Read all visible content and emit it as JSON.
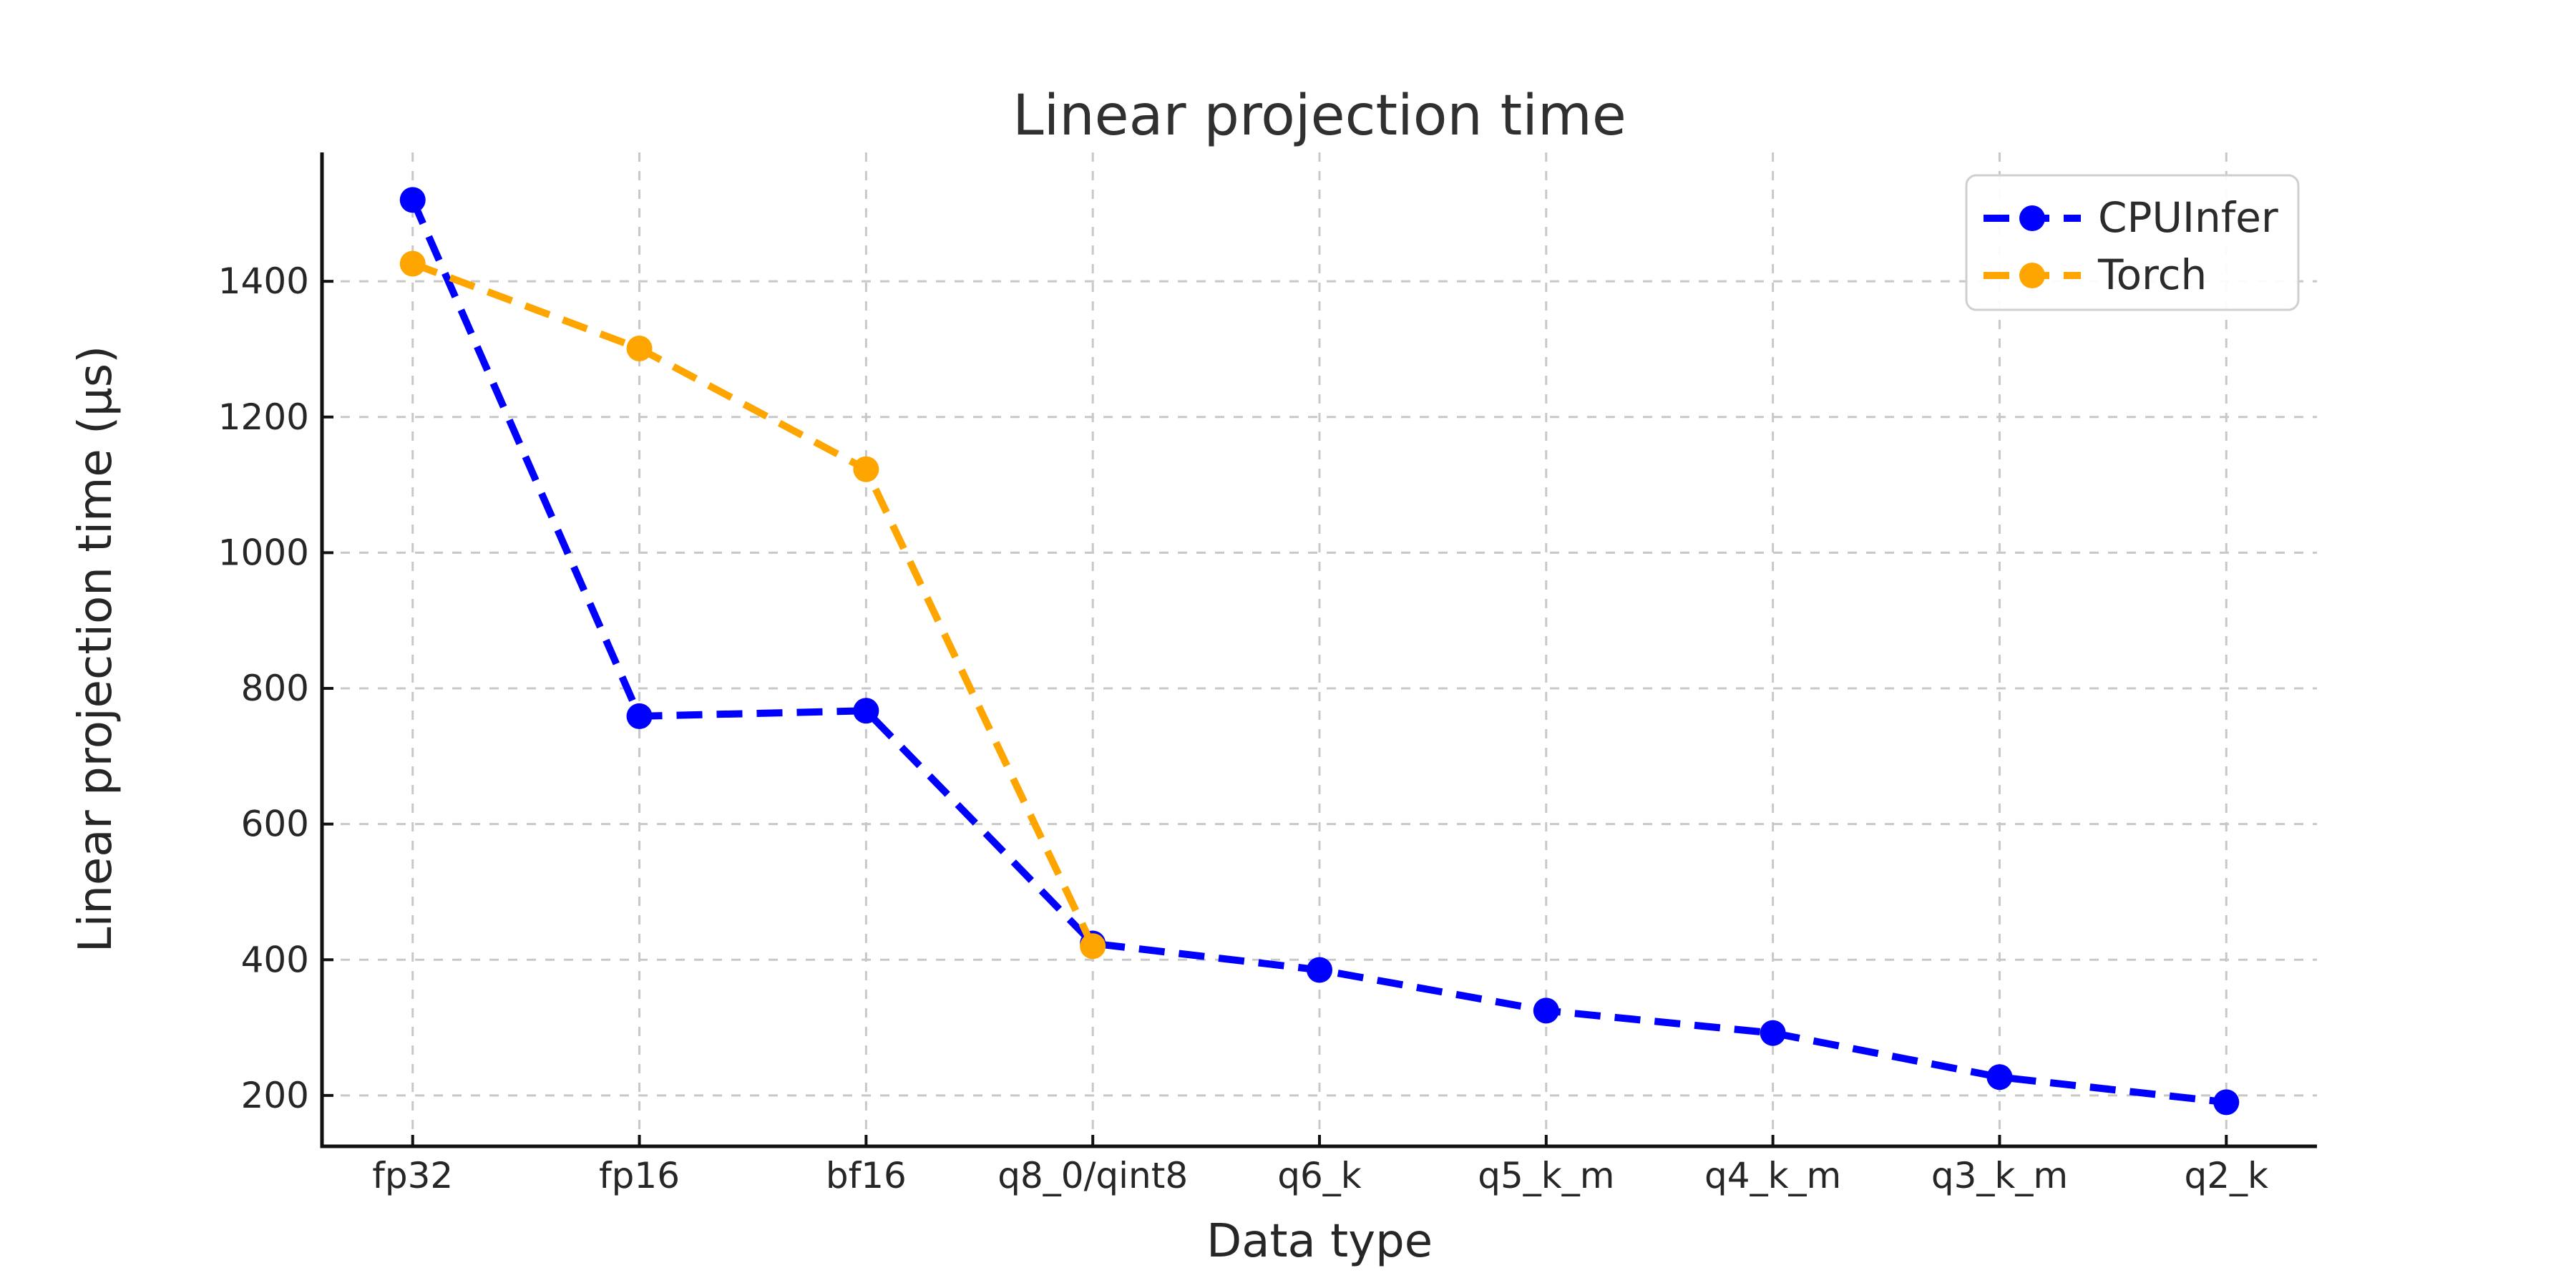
{
  "chart_data": {
    "type": "line",
    "title": "Linear projection time",
    "xlabel": "Data type",
    "ylabel": "Linear projection time (μs)",
    "categories": [
      "fp32",
      "fp16",
      "bf16",
      "q8_0/qint8",
      "q6_k",
      "q5_k_m",
      "q4_k_m",
      "q3_k_m",
      "q2_k"
    ],
    "series": [
      {
        "name": "CPUInfer",
        "color": "#0000FF",
        "values": [
          1520,
          759,
          767,
          424,
          385,
          325,
          292,
          227,
          190
        ]
      },
      {
        "name": "Torch",
        "color": "#FFA500",
        "values": [
          1426,
          1301,
          1123,
          420
        ]
      }
    ],
    "yticks": [
      200,
      400,
      600,
      800,
      1000,
      1200,
      1400
    ],
    "ylim": [
      125,
      1590
    ],
    "grid": true,
    "grid_style": "dashed",
    "line_style": "dashed",
    "marker": "circle",
    "legend_position": "upper right"
  }
}
